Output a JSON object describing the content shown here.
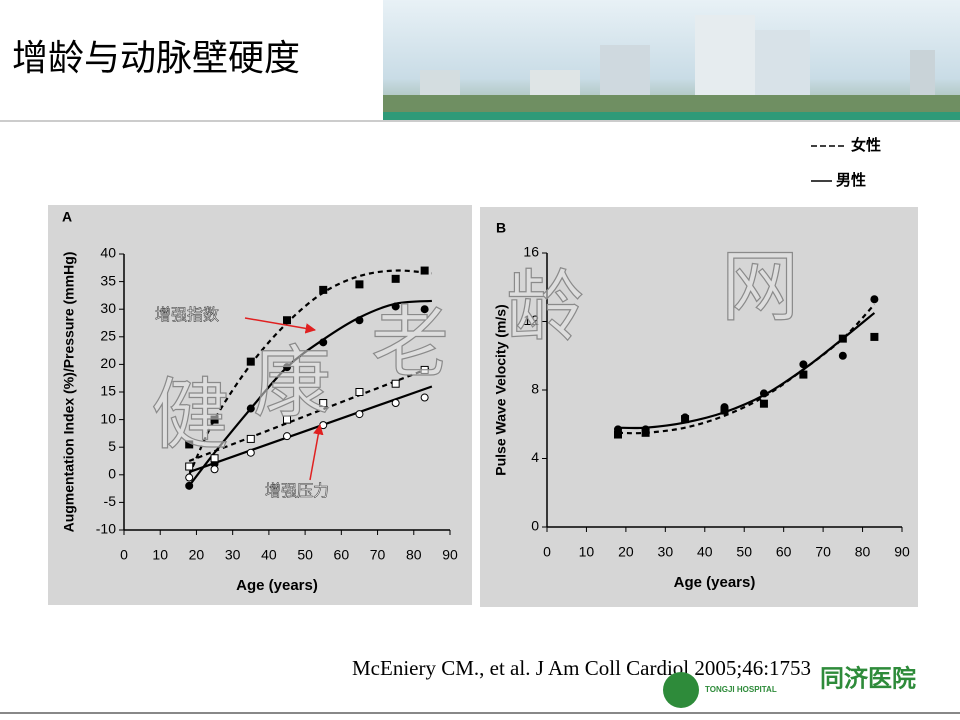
{
  "title": "增龄与动脉壁硬度",
  "legend": [
    "女性",
    "男性"
  ],
  "watermark": [
    "健",
    "康",
    "老",
    "龄",
    "网"
  ],
  "citation": "McEniery CM., et al. J Am Coll Cardiol 2005;46:1753",
  "logo": {
    "name": "同济医院",
    "english": "TONGJI HOSPITAL"
  },
  "chart_data": [
    {
      "type": "scatter",
      "panel": "A",
      "x_label": "Age (years)",
      "y_label": "Augmentation Index (%)/Pressure (mmHg)",
      "xlim": [
        0,
        90
      ],
      "xticks": [
        0,
        10,
        20,
        30,
        40,
        50,
        60,
        70,
        80,
        90
      ],
      "ylim": [
        -10,
        40
      ],
      "yticks": [
        -10,
        -5,
        0,
        5,
        10,
        15,
        20,
        25,
        30,
        35,
        40
      ],
      "x": [
        18,
        25,
        35,
        45,
        55,
        65,
        75,
        83
      ],
      "series": [
        {
          "marker": "square",
          "filled": true,
          "color": "#000000",
          "values": [
            5.5,
            10,
            20.5,
            28,
            33.5,
            34.5,
            35.5,
            37
          ]
        },
        {
          "marker": "circle",
          "filled": true,
          "color": "#000000",
          "values": [
            -2,
            2,
            12,
            19.5,
            24,
            28,
            30.5,
            30
          ]
        },
        {
          "marker": "square",
          "filled": false,
          "color": "#000000",
          "values": [
            1.5,
            3,
            6.5,
            10,
            13,
            15,
            16.5,
            19
          ]
        },
        {
          "marker": "circle",
          "filled": false,
          "color": "#000000",
          "values": [
            -0.5,
            1,
            4,
            7,
            9,
            11,
            13,
            14
          ]
        }
      ],
      "fits": [
        {
          "dashed": true,
          "color": "#000000",
          "x": [
            18,
            25,
            35,
            45,
            55,
            65,
            75,
            85
          ],
          "values": [
            0,
            10,
            20,
            27.5,
            33,
            36,
            37,
            36.5
          ]
        },
        {
          "dashed": false,
          "color": "#000000",
          "x": [
            18,
            25,
            35,
            45,
            55,
            65,
            75,
            85
          ],
          "values": [
            -2,
            4,
            12,
            19.5,
            24.5,
            28.5,
            31,
            31.5
          ]
        },
        {
          "dashed": true,
          "color": "#000000",
          "x": [
            18,
            85
          ],
          "values": [
            2.5,
            19.5
          ]
        },
        {
          "dashed": false,
          "color": "#000000",
          "x": [
            18,
            85
          ],
          "values": [
            0.5,
            16
          ]
        }
      ],
      "annotations": [
        "增强指数",
        "增强压力"
      ]
    },
    {
      "type": "scatter",
      "panel": "B",
      "x_label": "Age (years)",
      "y_label": "Pulse Wave Velocity (m/s)",
      "xlim": [
        0,
        90
      ],
      "xticks": [
        0,
        10,
        20,
        30,
        40,
        50,
        60,
        70,
        80,
        90
      ],
      "ylim": [
        0,
        16
      ],
      "yticks": [
        0,
        4,
        8,
        12,
        16
      ],
      "x": [
        18,
        25,
        35,
        45,
        55,
        65,
        75,
        83
      ],
      "series": [
        {
          "marker": "square",
          "filled": true,
          "color": "#000000",
          "values": [
            5.4,
            5.5,
            6.3,
            6.8,
            7.2,
            8.9,
            11,
            11.1
          ]
        },
        {
          "marker": "circle",
          "filled": true,
          "color": "#000000",
          "values": [
            5.7,
            5.7,
            6.4,
            7,
            7.8,
            9.5,
            10,
            13.3
          ]
        }
      ],
      "fits": [
        {
          "dashed": true,
          "color": "#000000",
          "x": [
            18,
            25,
            35,
            45,
            55,
            65,
            75,
            83
          ],
          "values": [
            5.5,
            5.5,
            5.8,
            6.5,
            7.6,
            9.2,
            11,
            13
          ]
        },
        {
          "dashed": false,
          "color": "#000000",
          "x": [
            18,
            25,
            35,
            45,
            55,
            65,
            75,
            83
          ],
          "values": [
            5.8,
            5.8,
            6.1,
            6.7,
            7.7,
            9.2,
            11,
            12.5
          ]
        }
      ],
      "annotations": []
    }
  ]
}
